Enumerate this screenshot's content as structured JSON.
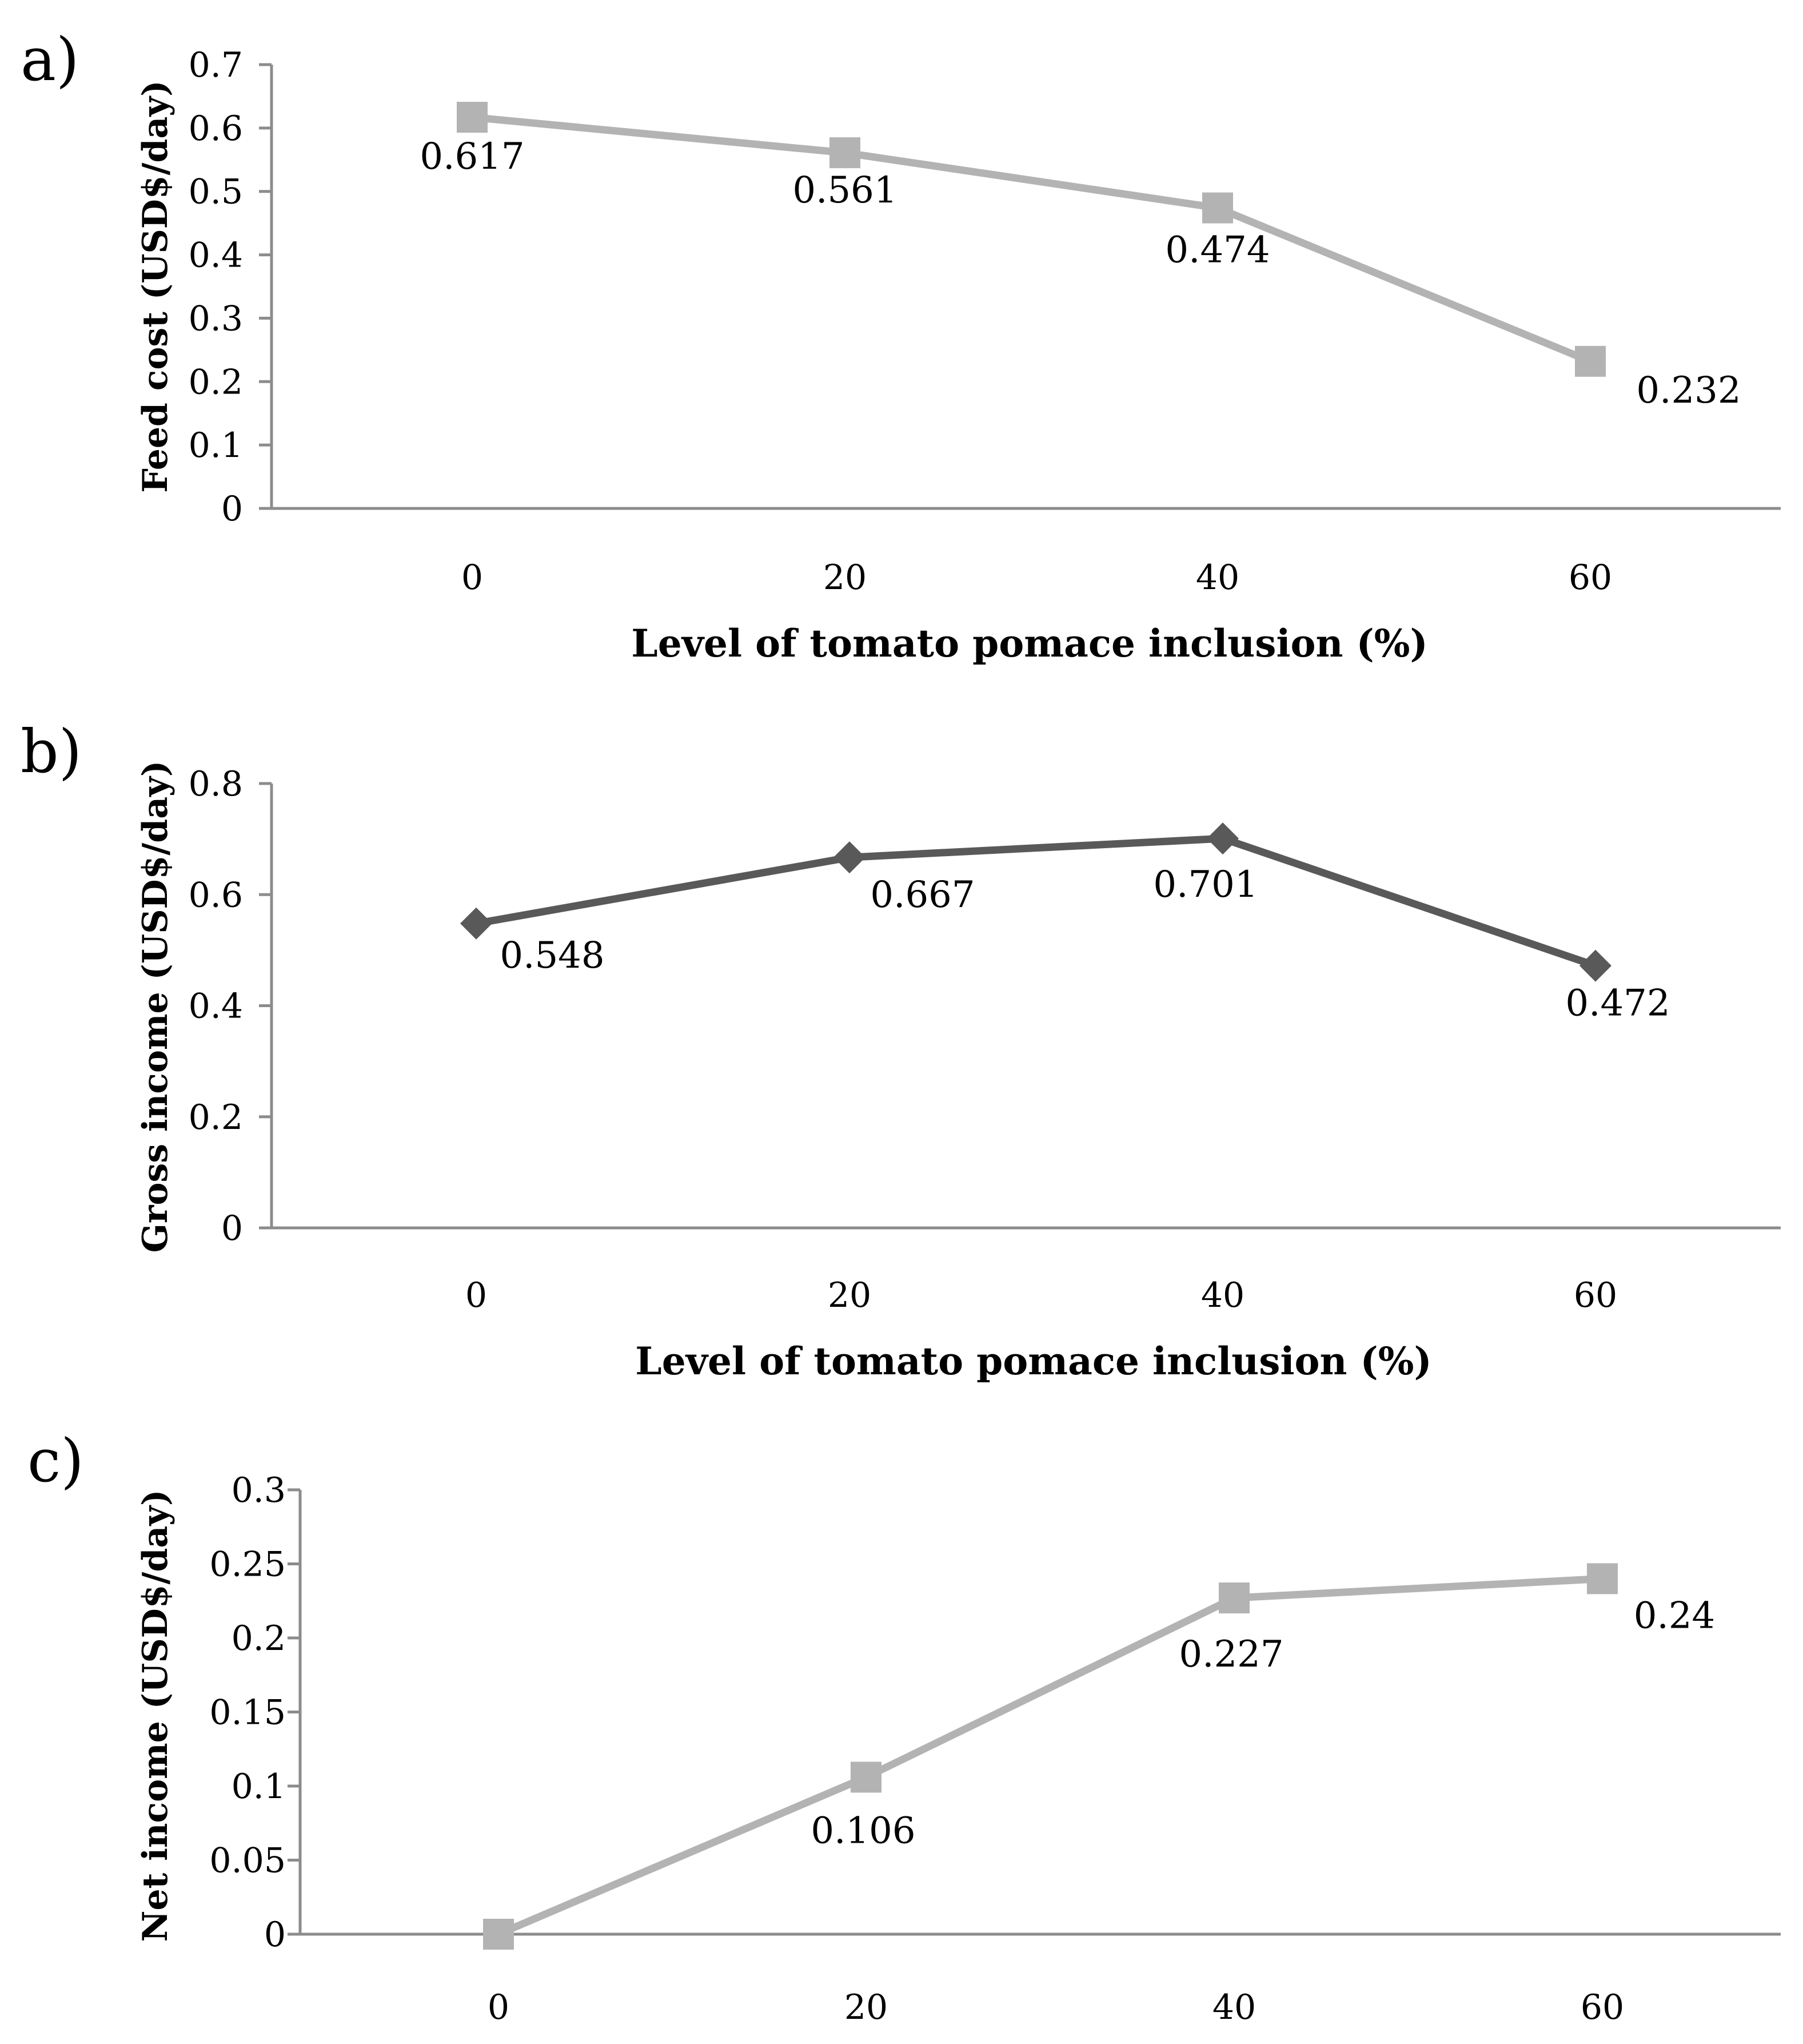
{
  "chart_data": [
    {
      "type": "line",
      "panel": "a)",
      "categories": [
        "0",
        "20",
        "40",
        "60"
      ],
      "series": [
        {
          "name": "Feed cost",
          "values": [
            0.617,
            0.561,
            0.474,
            0.232
          ],
          "marker": "square",
          "color": "#b3b3b3"
        }
      ],
      "data_labels": [
        "0.617",
        "0.561",
        "0.474",
        "0.232"
      ],
      "y_ticks": [
        "0",
        "0.1",
        "0.2",
        "0.3",
        "0.4",
        "0.5",
        "0.6",
        "0.7"
      ],
      "ylim": [
        0,
        0.7
      ],
      "xlabel": "Level of tomato pomace inclusion (%)",
      "ylabel": "Feed cost (USD$/day)",
      "grid": false
    },
    {
      "type": "line",
      "panel": "b)",
      "categories": [
        "0",
        "20",
        "40",
        "60"
      ],
      "series": [
        {
          "name": "Gross income",
          "values": [
            0.548,
            0.667,
            0.701,
            0.472
          ],
          "marker": "diamond",
          "color": "#595959"
        }
      ],
      "data_labels": [
        "0.548",
        "0.667",
        "0.701",
        "0.472"
      ],
      "y_ticks": [
        "0",
        "0.2",
        "0.4",
        "0.6",
        "0.8"
      ],
      "ylim": [
        0,
        0.8
      ],
      "xlabel": "Level of tomato pomace inclusion (%)",
      "ylabel": "Gross income (USD$/day)",
      "grid": false
    },
    {
      "type": "line",
      "panel": "c)",
      "categories": [
        "0",
        "20",
        "40",
        "60"
      ],
      "series": [
        {
          "name": "Net income",
          "values": [
            0,
            0.106,
            0.227,
            0.24
          ],
          "marker": "square",
          "color": "#b3b3b3"
        }
      ],
      "data_labels": [
        "",
        "0.106",
        "0.227",
        "0.24"
      ],
      "y_ticks": [
        "0",
        "0.05",
        "0.1",
        "0.15",
        "0.2",
        "0.25",
        "0.3"
      ],
      "ylim": [
        0,
        0.3
      ],
      "xlabel": "",
      "ylabel": "Net income (USD$/day)",
      "grid": false
    }
  ]
}
